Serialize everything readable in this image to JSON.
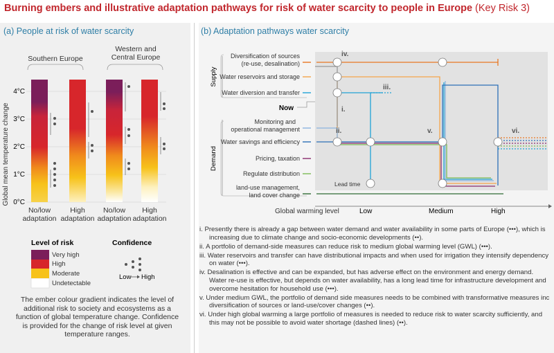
{
  "title": {
    "bold": "Burning embers and illustrative adaptation pathways for risk of water scarcity to people in Europe",
    "normal": "(Key Risk 3)"
  },
  "panel_a": {
    "title": "(a) People at risk of water scarcity",
    "regions": [
      "Southern Europe",
      "Western and Central Europe"
    ],
    "y_axis_label": "Global mean temperature change",
    "y_ticks": [
      "4°C",
      "3°C",
      "2°C",
      "1°C",
      "0°C"
    ],
    "columns": [
      {
        "label1": "No/low",
        "label2": "adaptation"
      },
      {
        "label1": "High",
        "label2": "adaptation"
      },
      {
        "label1": "No/low",
        "label2": "adaptation"
      },
      {
        "label1": "High",
        "label2": "adaptation"
      }
    ],
    "legend": {
      "risk_title": "Level of risk",
      "risk_levels": [
        {
          "label": "Very high",
          "color": "#7b1e5a"
        },
        {
          "label": "High",
          "color": "#d7262b"
        },
        {
          "label": "Moderate",
          "color": "#f7c21a"
        },
        {
          "label": "Undetectable",
          "color": "#ffffff"
        }
      ],
      "confidence_title": "Confidence",
      "confidence_low": "Low",
      "confidence_high": "High"
    },
    "explanation": "The ember colour gradient indicates the level of additional risk to society and ecosystems as a function of global temperature change. Confidence is provided for the change of risk level at given temperature ranges."
  },
  "panel_b": {
    "title": "(b) Adaptation pathways water scarcity",
    "group_supply": "Supply",
    "group_demand": "Demand",
    "now_label": "Now",
    "lead_time": "Lead time",
    "measures": [
      {
        "label1": "Diversification of sources",
        "label2": "(re-use, desalination)",
        "color": "#e87722"
      },
      {
        "label1": "Water reservoirs and storage",
        "label2": "",
        "color": "#f5a44a"
      },
      {
        "label1": "Water diversion and transfer",
        "label2": "",
        "color": "#1fa3d6"
      },
      {
        "label1": "Monitoring and",
        "label2": "operational management",
        "color": "#8ab4e0"
      },
      {
        "label1": "Water savings and efficiency",
        "label2": "",
        "color": "#2c6fb7"
      },
      {
        "label1": "Pricing, taxation",
        "label2": "",
        "color": "#8a2b6e"
      },
      {
        "label1": "Regulate distribution",
        "label2": "",
        "color": "#7dbb55"
      },
      {
        "label1": "land-use management,",
        "label2": "land cover change",
        "color": "#2f6b34"
      }
    ],
    "roman_markers": [
      "iv.",
      "iii.",
      "i.",
      "ii.",
      "v.",
      "vi."
    ],
    "x_axis_label": "Global warming level",
    "x_ticks": [
      "Low",
      "Medium",
      "High"
    ],
    "notes": [
      "i. Presently there is already a gap between water demand and water availability in some parts of Europe (•••), which is increasing due to climate change and socio-economic developments (••).",
      "ii. A portfolio of demand-side measures can reduce risk to medium global warming level (GWL) (•••).",
      "iii. Water reservoirs and transfer can have distributional impacts and when used for irrigation they intensify dependency on water (•••).",
      "iv. Desalination is effective and can be expanded, but has adverse effect on the environment and energy demand. Water re-use is effective, but depends on water availability, has a long lead time for infrastructure development and overcome hesitation for household use (•••).",
      "v. Under medium GWL, the portfolio of demand side measures needs to be combined with transformative measures inc diversification of sources or land-use/cover changes (••).",
      "vi. Under high global warming a large portfolio of measures is needed to reduce risk to water scarcity sufficiently, and this may not be possible to avoid water shortage (dashed lines) (••)."
    ]
  }
}
